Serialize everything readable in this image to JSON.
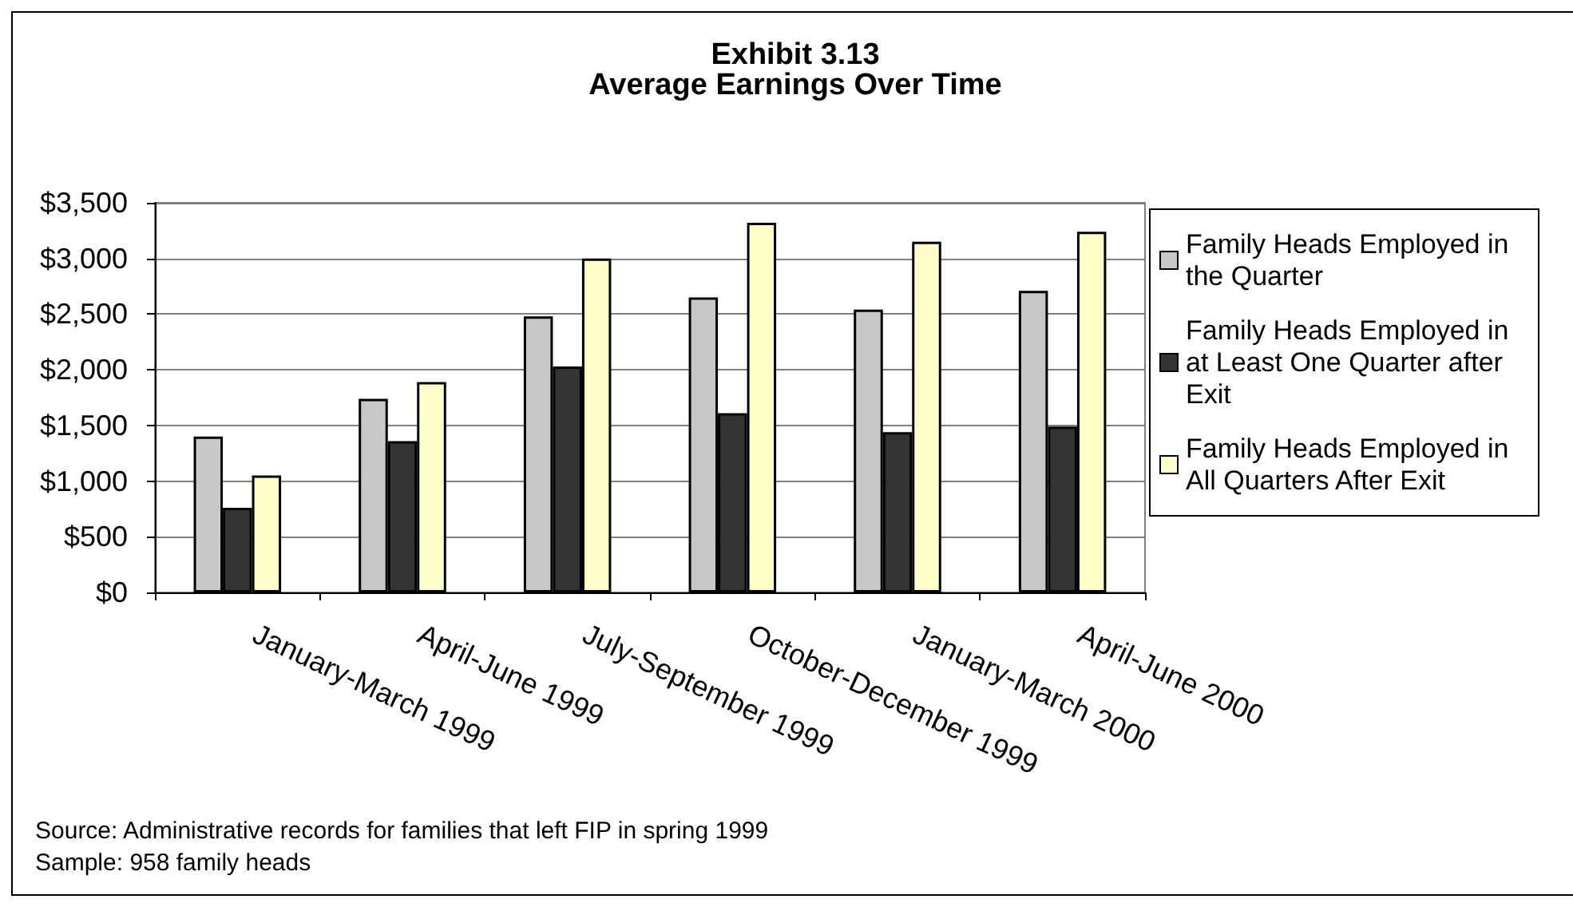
{
  "chart_data": {
    "type": "bar",
    "title": "Exhibit 3.13",
    "subtitle": "Average Earnings Over Time",
    "categories": [
      "January-March 1999",
      "April-June 1999",
      "July-September 1999",
      "October-December 1999",
      "January-March 2000",
      "April-June 2000"
    ],
    "series": [
      {
        "name": "Family Heads Employed in the Quarter",
        "color": "#c8c8c8",
        "values": [
          1400,
          1740,
          2480,
          2650,
          2540,
          2710
        ]
      },
      {
        "name": "Family Heads Employed in at Least One Quarter after Exit",
        "color": "#333333",
        "values": [
          760,
          1360,
          2030,
          1610,
          1440,
          1490
        ]
      },
      {
        "name": "Family Heads Employed in All Quarters After Exit",
        "color": "#ffffcc",
        "values": [
          1050,
          1890,
          3000,
          3320,
          3150,
          3240
        ]
      }
    ],
    "ylim": [
      0,
      3500
    ],
    "yticks": [
      {
        "value": 0,
        "label": "$0"
      },
      {
        "value": 500,
        "label": "$500"
      },
      {
        "value": 1000,
        "label": "$1,000"
      },
      {
        "value": 1500,
        "label": "$1,500"
      },
      {
        "value": 2000,
        "label": "$2,000"
      },
      {
        "value": 2500,
        "label": "$2,500"
      },
      {
        "value": 3000,
        "label": "$3,000"
      },
      {
        "value": 3500,
        "label": "$3,500"
      }
    ],
    "grid": "y",
    "legend": "right",
    "annotations": [
      "Source: Administrative records for families that left FIP in spring 1999",
      "Sample: 958 family heads"
    ]
  }
}
